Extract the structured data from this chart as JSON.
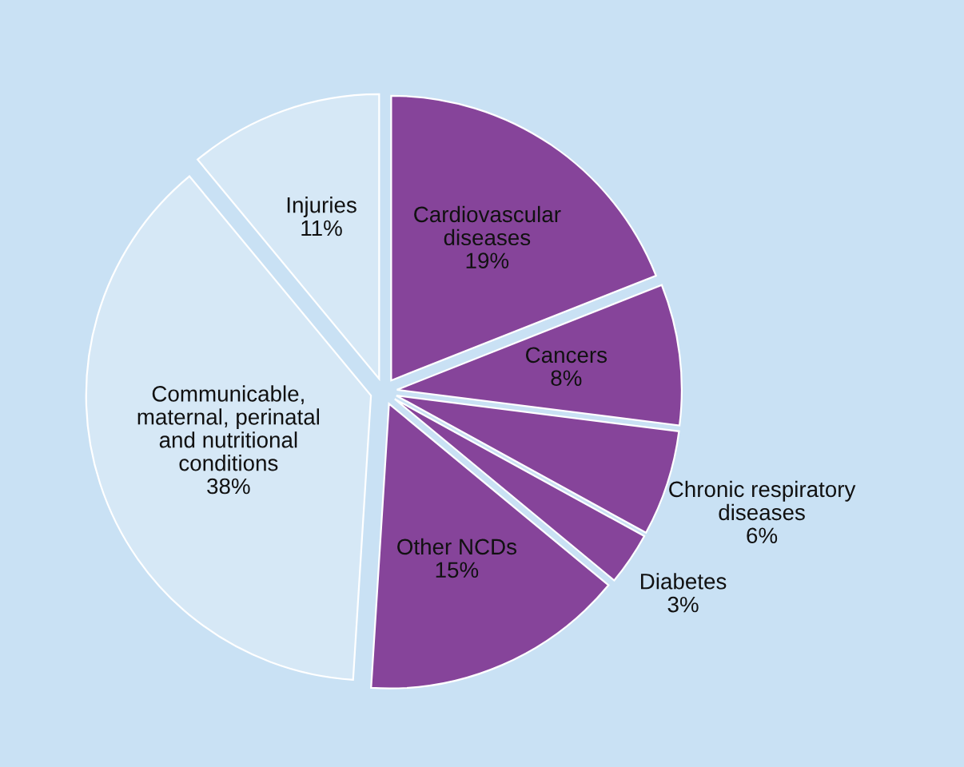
{
  "chart_data": {
    "type": "pie",
    "categories": [
      "Cardiovascular\ndiseases",
      "Cancers",
      "Chronic respiratory\ndiseases",
      "Diabetes",
      "Other NCDs",
      "Communicable,\nmaternal, perinatal\nand nutritional\nconditions",
      "Injuries"
    ],
    "values": [
      19,
      8,
      6,
      3,
      15,
      38,
      11
    ],
    "value_labels": [
      "19%",
      "8%",
      "6%",
      "3%",
      "15%",
      "38%",
      "11%"
    ],
    "colors": [
      "#86449a",
      "#86449a",
      "#86449a",
      "#86449a",
      "#86449a",
      "#d6e8f6",
      "#d6e8f6"
    ]
  }
}
